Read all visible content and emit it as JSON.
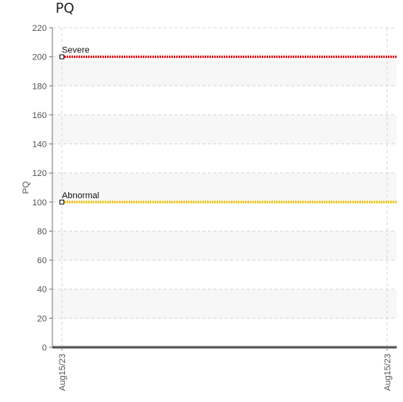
{
  "chart_data": {
    "type": "line",
    "title": "PQ",
    "ylabel": "PQ",
    "xlabel": "",
    "ylim": [
      0,
      220
    ],
    "y_ticks": [
      0,
      20,
      40,
      60,
      80,
      100,
      120,
      140,
      160,
      180,
      200,
      220
    ],
    "x_tick_labels": [
      "Aug15/23",
      "Aug15/23"
    ],
    "grid": true,
    "alternating_bands": true,
    "series": [],
    "reference_lines": [
      {
        "label": "Severe",
        "value": 200,
        "color": "#e8141b"
      },
      {
        "label": "Abnormal",
        "value": 100,
        "color": "#f2c300"
      }
    ]
  }
}
